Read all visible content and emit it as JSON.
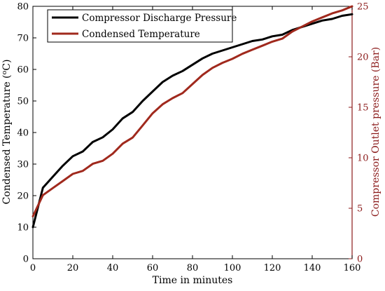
{
  "chart_data": {
    "type": "line",
    "title": "",
    "xlabel": "Time in minutes",
    "ylabel_left": "Condensed Temperature (°C)",
    "ylabel_left_main": "Condensed Temperature (",
    "ylabel_left_super": "o",
    "ylabel_left_tail": "C)",
    "ylabel_right": "Compressor Outlet pressure (Bar)",
    "xlim": [
      0,
      160
    ],
    "ylim_left": [
      0,
      80
    ],
    "ylim_right": [
      0,
      25
    ],
    "x_ticks": [
      0,
      20,
      40,
      60,
      80,
      100,
      120,
      140,
      160
    ],
    "x_tick_labels": [
      "0",
      "20",
      "40",
      "60",
      "80",
      "100",
      "120",
      "140",
      "160"
    ],
    "y_left_ticks": [
      0,
      10,
      20,
      30,
      40,
      50,
      60,
      70,
      80
    ],
    "y_left_tick_labels": [
      "0",
      "10",
      "20",
      "30",
      "40",
      "50",
      "60",
      "70",
      "80"
    ],
    "y_right_ticks": [
      0,
      5,
      10,
      15,
      20,
      25
    ],
    "y_right_tick_labels": [
      "0",
      "5",
      "10",
      "15",
      "20",
      "25"
    ],
    "grid": false,
    "legend_position": "top-left",
    "series": [
      {
        "name": "Compressor Discharge Pressure",
        "axis": "left",
        "color": "#000000",
        "x": [
          0,
          5,
          10,
          15,
          20,
          25,
          30,
          35,
          40,
          45,
          50,
          55,
          60,
          65,
          70,
          75,
          80,
          85,
          90,
          95,
          100,
          105,
          110,
          115,
          120,
          125,
          130,
          135,
          140,
          145,
          150,
          155,
          160
        ],
        "y": [
          10,
          22.5,
          26,
          29.5,
          32.5,
          34,
          37,
          38.5,
          41,
          44.5,
          46.5,
          50,
          53,
          56,
          58,
          59.5,
          61.5,
          63.5,
          65,
          66,
          67,
          68,
          69,
          69.5,
          70.5,
          71,
          72.5,
          73.5,
          74.5,
          75.5,
          76,
          77,
          77.5
        ]
      },
      {
        "name": "Condensed Temperature",
        "axis": "right",
        "color": "#A0291D",
        "x": [
          0,
          5,
          10,
          15,
          20,
          25,
          30,
          35,
          40,
          45,
          50,
          55,
          60,
          65,
          70,
          75,
          80,
          85,
          90,
          95,
          100,
          105,
          110,
          115,
          120,
          125,
          130,
          135,
          140,
          145,
          150,
          155,
          160
        ],
        "y": [
          4.2,
          6.3,
          7.0,
          7.7,
          8.4,
          8.7,
          9.4,
          9.7,
          10.4,
          11.4,
          12.0,
          13.2,
          14.4,
          15.3,
          15.9,
          16.4,
          17.3,
          18.2,
          18.9,
          19.4,
          19.8,
          20.3,
          20.7,
          21.1,
          21.5,
          21.8,
          22.5,
          23.0,
          23.5,
          23.9,
          24.3,
          24.6,
          25.0
        ]
      }
    ]
  },
  "colors": {
    "axis_left": "#000000",
    "axis_right": "#8B1A1A",
    "series_pressure": "#000000",
    "series_temperature": "#A0291D"
  }
}
